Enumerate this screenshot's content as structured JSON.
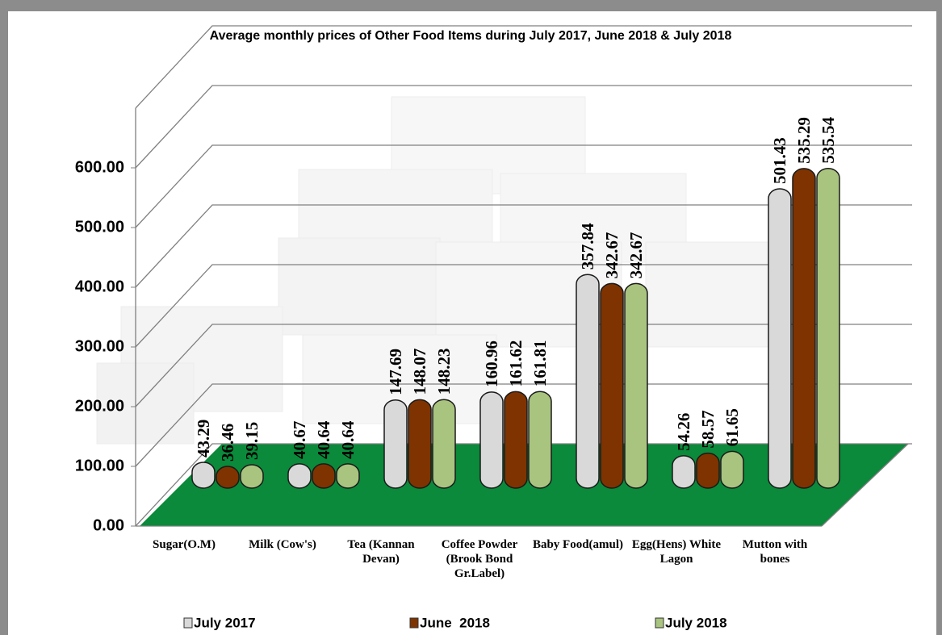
{
  "chart_data": {
    "type": "bar",
    "title": "Average monthly prices of Other Food Items during July 2017, June  2018 & July 2018",
    "categories": [
      "Sugar(O.M)",
      "Milk (Cow's)",
      "Tea (Kannan Devan)",
      "Coffee Powder (Brook Bond Gr.Label)",
      "Baby Food(amul)",
      "Egg(Hens) White Lagon",
      "Mutton with bones"
    ],
    "series": [
      {
        "name": "July 2017",
        "color": "#d9d9d9",
        "values": [
          43.29,
          40.67,
          147.69,
          160.96,
          357.84,
          54.26,
          501.43
        ]
      },
      {
        "name": "June  2018",
        "color": "#7f3300",
        "values": [
          36.46,
          40.64,
          148.07,
          161.62,
          342.67,
          58.57,
          535.29
        ]
      },
      {
        "name": "July 2018",
        "color": "#a9c47f",
        "values": [
          39.15,
          40.64,
          148.23,
          161.81,
          342.67,
          61.65,
          535.54
        ]
      }
    ],
    "ylim": [
      0,
      700
    ],
    "yticks": [
      {
        "value": 0,
        "label": "0.00"
      },
      {
        "value": 100,
        "label": "100.00"
      },
      {
        "value": 200,
        "label": "200.00"
      },
      {
        "value": 300,
        "label": "300.00"
      },
      {
        "value": 400,
        "label": "400.00"
      },
      {
        "value": 500,
        "label": "500.00"
      },
      {
        "value": 600,
        "label": "600.00"
      }
    ],
    "grid": true,
    "floor_color": "#0a8a3a"
  }
}
